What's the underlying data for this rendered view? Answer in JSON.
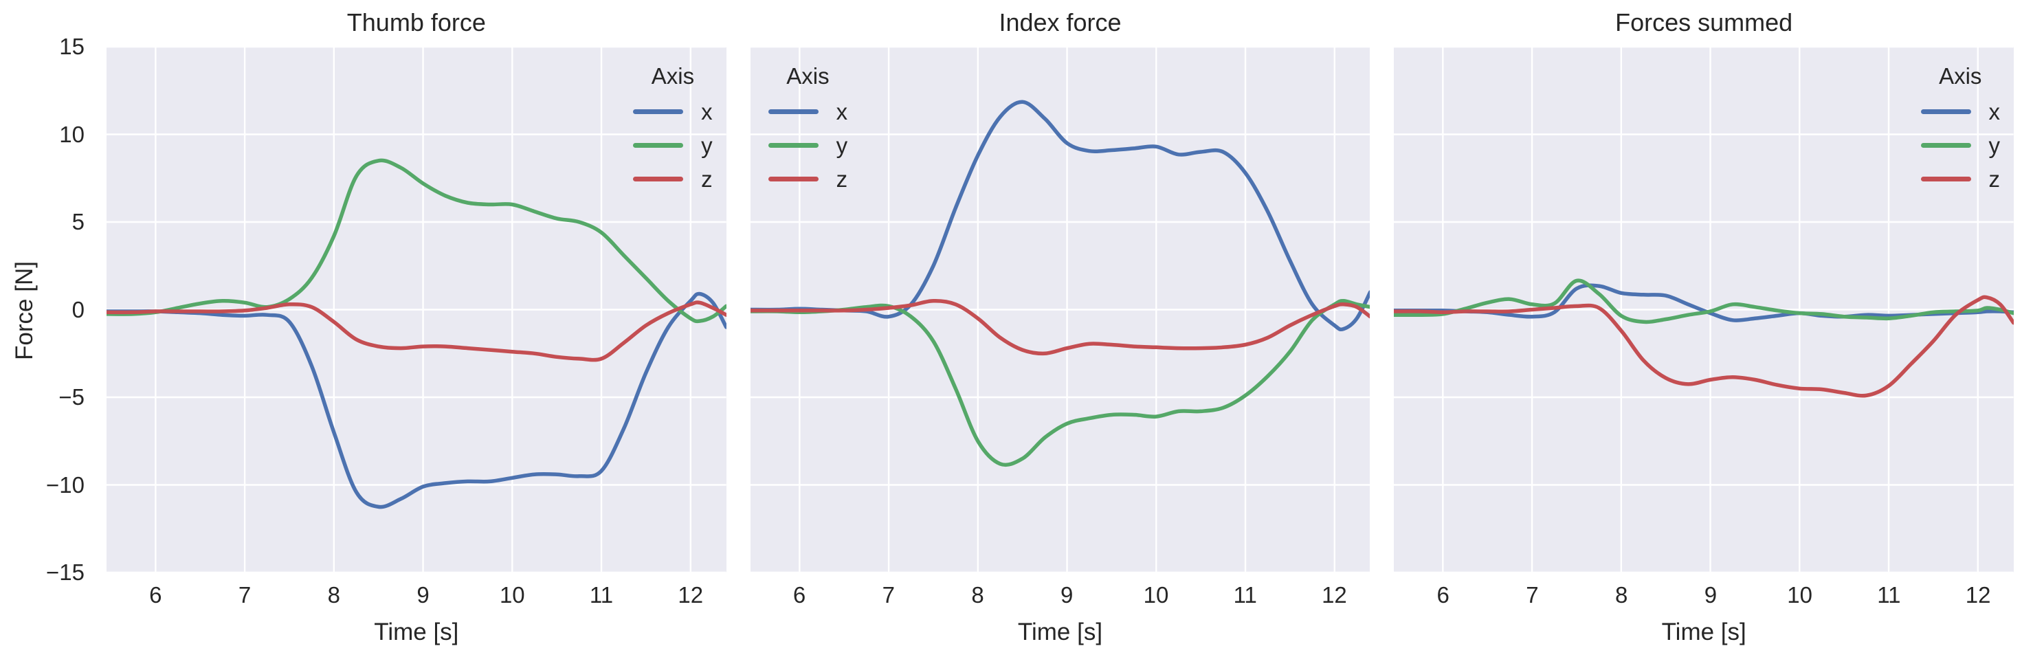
{
  "style": {
    "background": "#FFFFFF",
    "plot_background": "#EAEAF2",
    "grid_color": "#FFFFFF",
    "text_color": "#262626",
    "series_blue": "#4C72B0",
    "series_green": "#55A868",
    "series_red": "#C44E52"
  },
  "chart_data": [
    {
      "type": "line",
      "title": "Thumb force",
      "xlabel": "Time [s]",
      "ylabel": "Force [N]",
      "x_range": [
        5.45,
        12.4
      ],
      "y_range": [
        -15,
        15
      ],
      "x_ticks": [
        6,
        7,
        8,
        9,
        10,
        11,
        12
      ],
      "y_ticks": [
        15,
        10,
        5,
        0,
        -5,
        -10,
        -15
      ],
      "y_tick_labels": [
        "15",
        "10",
        "5",
        "0",
        "−5",
        "−10",
        "−15"
      ],
      "show_y_tick_labels": true,
      "grid": true,
      "legend": {
        "title": "Axis",
        "position": "upper-right"
      },
      "x": [
        5.45,
        5.75,
        6,
        6.25,
        6.5,
        6.75,
        7,
        7.25,
        7.5,
        7.75,
        8,
        8.25,
        8.5,
        8.75,
        9,
        9.25,
        9.5,
        9.75,
        10,
        10.25,
        10.5,
        10.75,
        11,
        11.25,
        11.5,
        11.75,
        12,
        12.1,
        12.25,
        12.4
      ],
      "series": [
        {
          "name": "x",
          "color": "#4C72B0",
          "values": [
            -0.1,
            -0.1,
            -0.1,
            -0.15,
            -0.2,
            -0.3,
            -0.35,
            -0.3,
            -0.7,
            -3.2,
            -7,
            -10.4,
            -11.25,
            -10.8,
            -10.1,
            -9.9,
            -9.8,
            -9.8,
            -9.6,
            -9.4,
            -9.4,
            -9.5,
            -9.2,
            -6.8,
            -3.6,
            -1,
            0.5,
            0.9,
            0.4,
            -1
          ]
        },
        {
          "name": "y",
          "color": "#55A868",
          "values": [
            -0.25,
            -0.25,
            -0.15,
            0.1,
            0.35,
            0.5,
            0.4,
            0.15,
            0.6,
            1.8,
            4.2,
            7.6,
            8.5,
            8.1,
            7.2,
            6.5,
            6.1,
            6,
            6,
            5.6,
            5.2,
            5,
            4.4,
            3.1,
            1.8,
            0.5,
            -0.5,
            -0.65,
            -0.4,
            0.2
          ]
        },
        {
          "name": "z",
          "color": "#C44E52",
          "values": [
            -0.15,
            -0.15,
            -0.1,
            -0.1,
            -0.1,
            -0.1,
            -0.05,
            0.1,
            0.3,
            0.15,
            -0.7,
            -1.7,
            -2.1,
            -2.2,
            -2.1,
            -2.1,
            -2.2,
            -2.3,
            -2.4,
            -2.5,
            -2.7,
            -2.8,
            -2.8,
            -1.9,
            -0.9,
            -0.2,
            0.3,
            0.4,
            0.1,
            -0.3
          ]
        }
      ]
    },
    {
      "type": "line",
      "title": "Index force",
      "xlabel": "Time [s]",
      "ylabel": "Force [N]",
      "x_range": [
        5.45,
        12.4
      ],
      "y_range": [
        -15,
        15
      ],
      "x_ticks": [
        6,
        7,
        8,
        9,
        10,
        11,
        12
      ],
      "y_ticks": [
        15,
        10,
        5,
        0,
        -5,
        -10,
        -15
      ],
      "y_tick_labels": [
        "15",
        "10",
        "5",
        "0",
        "−5",
        "−10",
        "−15"
      ],
      "show_y_tick_labels": false,
      "grid": true,
      "legend": {
        "title": "Axis",
        "position": "upper-left"
      },
      "x": [
        5.45,
        5.75,
        6,
        6.25,
        6.5,
        6.75,
        7,
        7.25,
        7.5,
        7.75,
        8,
        8.25,
        8.5,
        8.75,
        9,
        9.25,
        9.5,
        9.75,
        10,
        10.25,
        10.5,
        10.75,
        11,
        11.25,
        11.5,
        11.75,
        12,
        12.1,
        12.25,
        12.4
      ],
      "series": [
        {
          "name": "x",
          "color": "#4C72B0",
          "values": [
            0,
            0,
            0.05,
            0,
            -0.05,
            -0.1,
            -0.4,
            0.3,
            2.5,
            5.8,
            8.8,
            11,
            11.85,
            10.9,
            9.5,
            9.05,
            9.1,
            9.2,
            9.3,
            8.85,
            9,
            9,
            7.8,
            5.6,
            2.8,
            0.3,
            -0.9,
            -1.1,
            -0.5,
            1
          ]
        },
        {
          "name": "y",
          "color": "#55A868",
          "values": [
            -0.1,
            -0.1,
            -0.15,
            -0.1,
            0,
            0.15,
            0.2,
            -0.4,
            -1.8,
            -4.5,
            -7.5,
            -8.8,
            -8.5,
            -7.3,
            -6.5,
            -6.2,
            -6,
            -6,
            -6.1,
            -5.8,
            -5.8,
            -5.6,
            -4.9,
            -3.8,
            -2.4,
            -0.6,
            0.3,
            0.5,
            0.3,
            0.15
          ]
        },
        {
          "name": "z",
          "color": "#C44E52",
          "values": [
            -0.05,
            -0.05,
            -0.05,
            -0.05,
            -0.05,
            0,
            0.1,
            0.25,
            0.5,
            0.3,
            -0.5,
            -1.6,
            -2.3,
            -2.5,
            -2.2,
            -1.95,
            -2,
            -2.1,
            -2.15,
            -2.2,
            -2.2,
            -2.15,
            -2,
            -1.6,
            -0.9,
            -0.3,
            0.2,
            0.3,
            0.15,
            -0.4
          ]
        }
      ]
    },
    {
      "type": "line",
      "title": "Forces summed",
      "xlabel": "Time [s]",
      "ylabel": "Force [N]",
      "x_range": [
        5.45,
        12.4
      ],
      "y_range": [
        -15,
        15
      ],
      "x_ticks": [
        6,
        7,
        8,
        9,
        10,
        11,
        12
      ],
      "y_ticks": [
        15,
        10,
        5,
        0,
        -5,
        -10,
        -15
      ],
      "y_tick_labels": [
        "15",
        "10",
        "5",
        "0",
        "−5",
        "−10",
        "−15"
      ],
      "show_y_tick_labels": false,
      "grid": true,
      "legend": {
        "title": "Axis",
        "position": "upper-right"
      },
      "x": [
        5.45,
        5.75,
        6,
        6.25,
        6.5,
        6.75,
        7,
        7.25,
        7.5,
        7.75,
        8,
        8.25,
        8.5,
        8.75,
        9,
        9.25,
        9.5,
        9.75,
        10,
        10.25,
        10.5,
        10.75,
        11,
        11.25,
        11.5,
        11.75,
        12,
        12.1,
        12.25,
        12.4
      ],
      "series": [
        {
          "name": "x",
          "color": "#4C72B0",
          "values": [
            -0.05,
            -0.05,
            -0.05,
            -0.1,
            -0.15,
            -0.3,
            -0.4,
            -0.15,
            1.2,
            1.35,
            0.95,
            0.85,
            0.8,
            0.3,
            -0.2,
            -0.6,
            -0.5,
            -0.35,
            -0.2,
            -0.35,
            -0.4,
            -0.3,
            -0.35,
            -0.3,
            -0.25,
            -0.2,
            -0.15,
            -0.1,
            -0.1,
            -0.15
          ]
        },
        {
          "name": "y",
          "color": "#55A868",
          "values": [
            -0.3,
            -0.3,
            -0.25,
            0.05,
            0.4,
            0.6,
            0.3,
            0.35,
            1.65,
            0.9,
            -0.35,
            -0.7,
            -0.55,
            -0.3,
            -0.1,
            0.3,
            0.15,
            -0.05,
            -0.2,
            -0.25,
            -0.4,
            -0.45,
            -0.5,
            -0.35,
            -0.15,
            -0.1,
            -0.05,
            0.1,
            0,
            -0.2
          ]
        },
        {
          "name": "z",
          "color": "#C44E52",
          "values": [
            -0.1,
            -0.1,
            -0.15,
            -0.1,
            -0.1,
            -0.1,
            0,
            0.1,
            0.2,
            0.1,
            -1.2,
            -2.9,
            -3.9,
            -4.25,
            -4,
            -3.85,
            -4,
            -4.3,
            -4.5,
            -4.55,
            -4.75,
            -4.9,
            -4.35,
            -3.1,
            -1.8,
            -0.3,
            0.55,
            0.7,
            0.3,
            -0.75
          ]
        }
      ]
    }
  ]
}
